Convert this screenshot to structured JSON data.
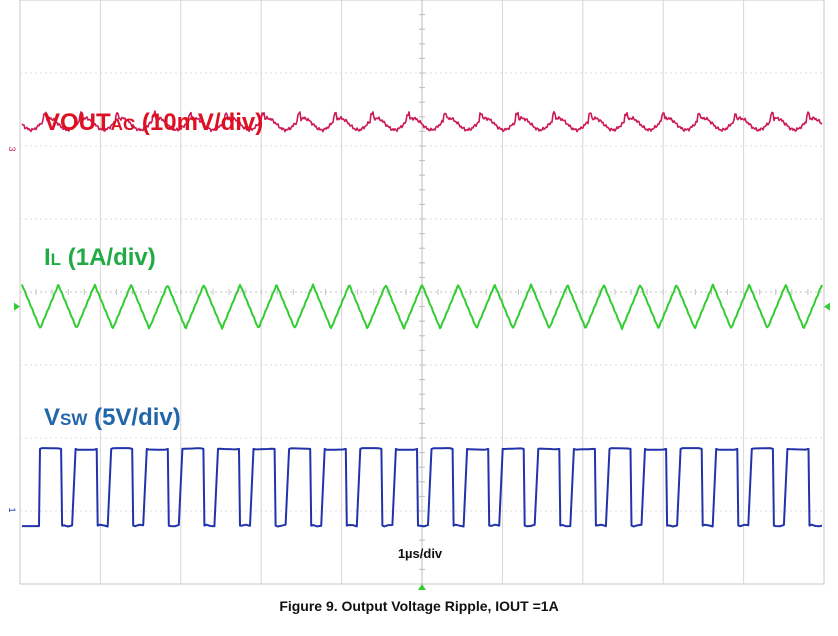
{
  "figure": {
    "caption": "Figure 9. Output Voltage Ripple, IOUT =1A",
    "timebase_label": "1µs/div"
  },
  "chart_data": {
    "type": "line",
    "grid": true,
    "divisions": {
      "x": 10,
      "y": 8
    },
    "series": [
      {
        "channel": "3",
        "label_main": "VOUT",
        "label_sub": "AC",
        "label_scale": " (10mV/div)",
        "color": "#cc1a55",
        "waveform": "ripple",
        "cycles": 22,
        "center_div": 6.3,
        "amplitude_div": 0.08
      },
      {
        "channel": "",
        "label_main": "I",
        "label_sub": "L",
        "label_scale": " (1A/div)",
        "color": "#33cc33",
        "waveform": "triangle",
        "cycles": 22,
        "center_div": 3.8,
        "amplitude_div": 0.3
      },
      {
        "channel": "1",
        "label_main": "V",
        "label_sub": "SW",
        "label_scale": " (5V/div)",
        "color": "#2233aa",
        "waveform": "square",
        "cycles": 22,
        "low_div": 0.8,
        "high_div": 1.85,
        "duty": 0.62
      }
    ],
    "label_colors": [
      "#dd1122",
      "#22aa44",
      "#2266aa"
    ]
  }
}
